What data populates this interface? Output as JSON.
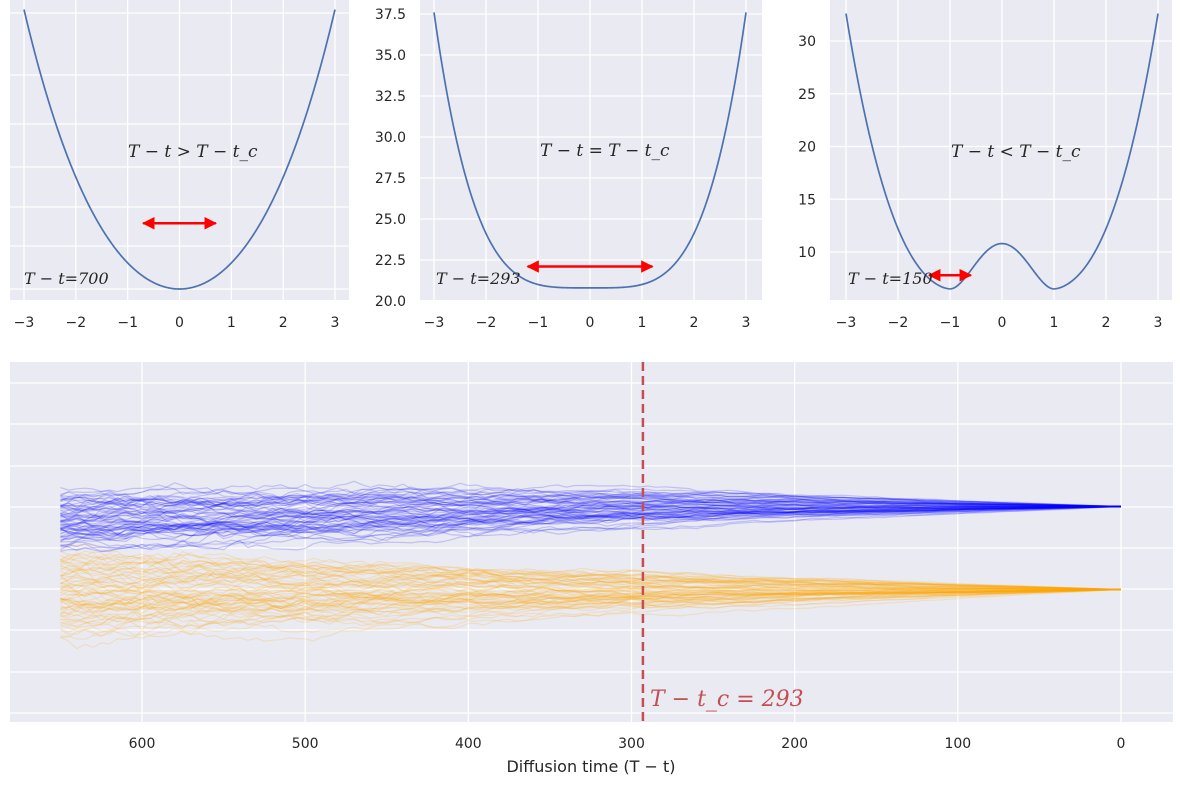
{
  "chart_data": [
    {
      "type": "line",
      "panel": "potential-top-left",
      "xlim": [
        -3,
        3
      ],
      "yticks": [],
      "xticks": [
        "−3",
        "−2",
        "−1",
        "0",
        "1",
        "2",
        "3"
      ],
      "curve": {
        "formula": "x^4/4 - a x^2/2 + c",
        "a": -4.5,
        "c": 22.5
      },
      "annotation_regime": "T − t > T − t_c",
      "annotation_time": "T − t=700",
      "arrow": {
        "from": -0.7,
        "to": 0.7,
        "y_value": 24.8,
        "color": "#ff0000"
      },
      "line_color": "#4c72b0"
    },
    {
      "type": "line",
      "panel": "potential-top-middle",
      "xlim": [
        -3,
        3
      ],
      "ylim": [
        20.0,
        37.8
      ],
      "yticks": [
        "20.0",
        "22.5",
        "25.0",
        "27.5",
        "30.0",
        "32.5",
        "35.0",
        "37.5"
      ],
      "xticks": [
        "−3",
        "−2",
        "−1",
        "0",
        "1",
        "2",
        "3"
      ],
      "curve": {
        "formula": "x^4/4 + c",
        "a": 0,
        "c": 20.8
      },
      "annotation_regime": "T − t = T − t_c",
      "annotation_time": "T − t=293",
      "arrow": {
        "from": -1.2,
        "to": 1.2,
        "y_value": 22.1,
        "color": "#ff0000"
      },
      "line_color": "#4c72b0"
    },
    {
      "type": "line",
      "panel": "potential-top-right",
      "xlim": [
        -3,
        3
      ],
      "ylim": [
        5.0,
        33.5
      ],
      "yticks": [
        "10",
        "15",
        "20",
        "25",
        "30"
      ],
      "xticks": [
        "−3",
        "−2",
        "−1",
        "0",
        "1",
        "2",
        "3"
      ],
      "curve": {
        "formula": "4.3 (x^2 - 1)^2 + 6.5",
        "min": 6.5,
        "barrier": 10.8
      },
      "annotation_regime": "T − t < T − t_c",
      "annotation_time": "T − t=150",
      "arrow": {
        "from": -1.4,
        "to": -0.6,
        "y_value": 7.8,
        "color": "#ff0000"
      },
      "line_color": "#4c72b0"
    },
    {
      "type": "line",
      "panel": "diffusion-trajectories",
      "xlim": [
        675,
        -32
      ],
      "xticks": [
        "600",
        "500",
        "400",
        "300",
        "200",
        "100",
        "0"
      ],
      "xlabel": "Diffusion time (T − t)",
      "series": [
        {
          "name": "",
          "color": "#0000ff",
          "end_value": 1,
          "start_time": 650,
          "spread_at_start": 1.1
        },
        {
          "name": "",
          "color": "#ffa500",
          "end_value": -1,
          "start_time": 650,
          "spread_at_start": 1.1
        }
      ],
      "critical_line": {
        "x": 293,
        "label": "T − t_c = 293",
        "color": "#c44e52"
      }
    }
  ]
}
